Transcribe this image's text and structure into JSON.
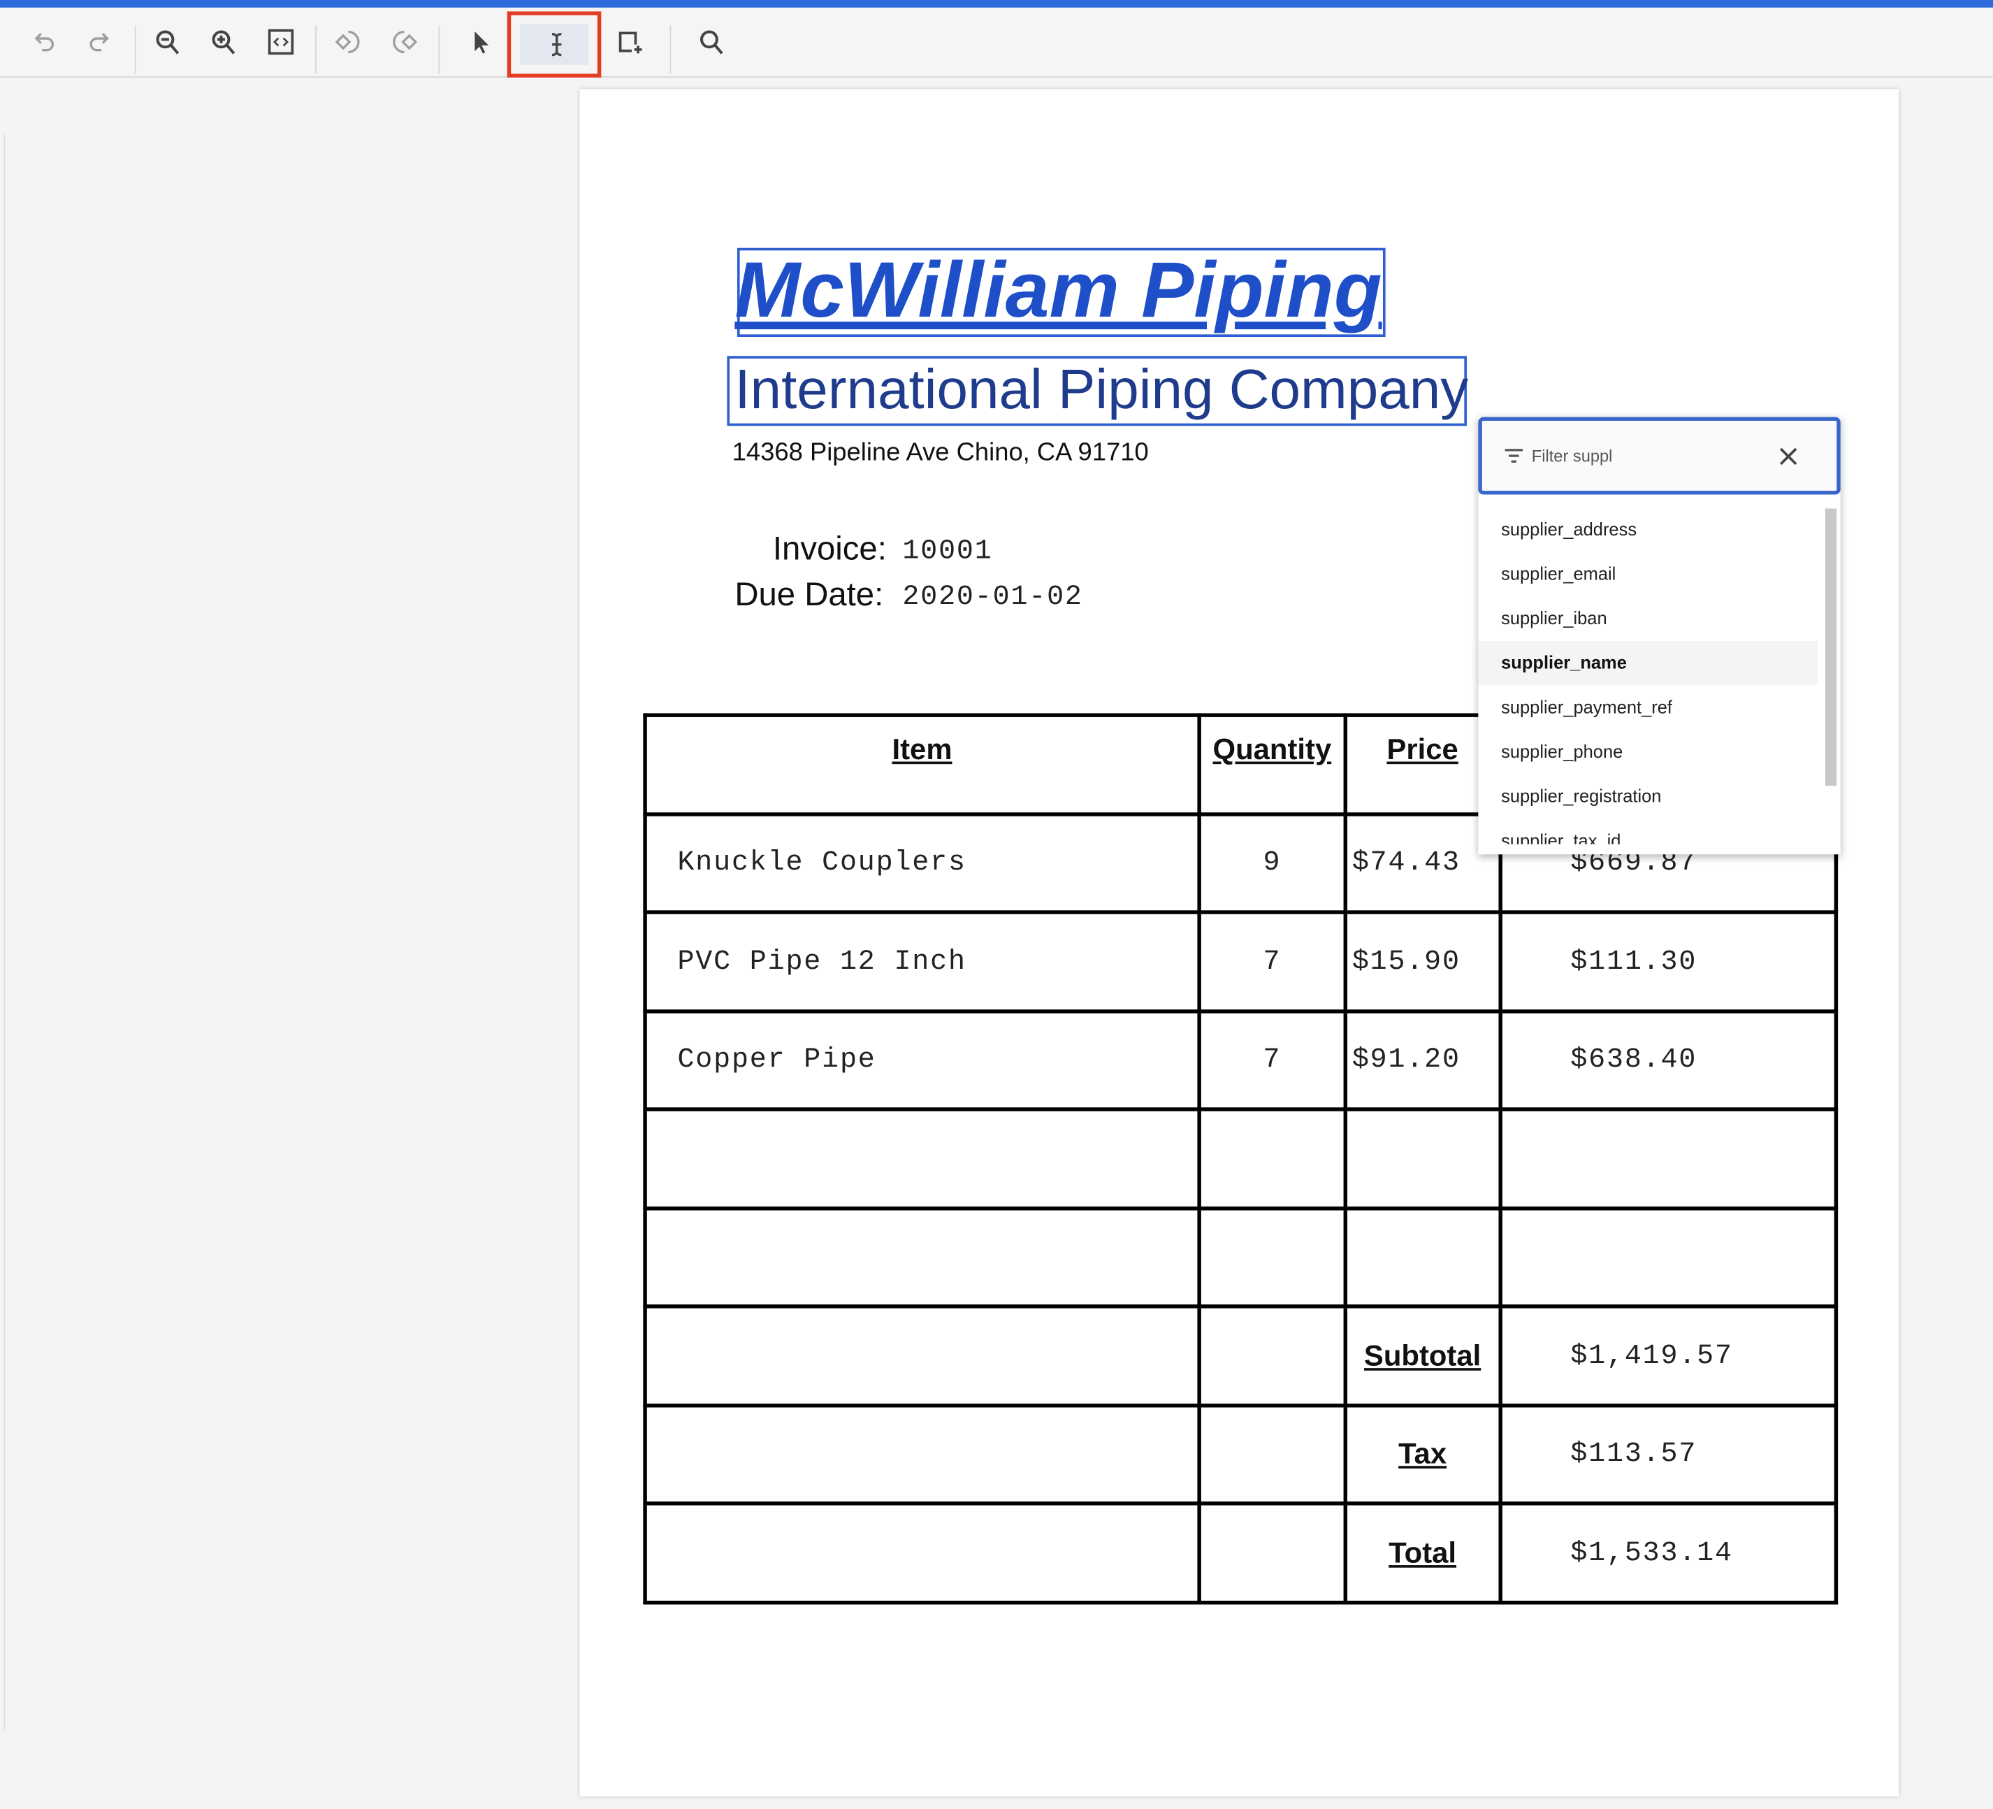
{
  "toolbar": {
    "icons": [
      "undo-icon",
      "redo-icon",
      "zoom-out-icon",
      "zoom-in-icon",
      "fit-page-icon",
      "rotate-left-icon",
      "rotate-right-icon",
      "pointer-icon",
      "text-select-icon",
      "add-box-icon",
      "search-icon"
    ],
    "active_tool": "text-select-icon",
    "colors": {
      "accent": "#2d6bdc",
      "highlight": "#e23c22"
    }
  },
  "document": {
    "company": "McWilliam Piping",
    "subtitle": "International Piping Company",
    "address": "14368 Pipeline Ave Chino, CA 91710",
    "invoice_label": "Invoice:",
    "invoice_value": "10001",
    "due_label": "Due Date:",
    "due_value": "2020-01-02",
    "table": {
      "headers": [
        "Item",
        "Quantity",
        "Price"
      ],
      "rows": [
        [
          "Knuckle Couplers",
          "9",
          "$74.43",
          "$669.87"
        ],
        [
          "PVC Pipe 12 Inch",
          "7",
          "$15.90",
          "$111.30"
        ],
        [
          "Copper Pipe",
          "7",
          "$91.20",
          "$638.40"
        ],
        [
          "",
          "",
          "",
          ""
        ],
        [
          "",
          "",
          "",
          ""
        ]
      ],
      "subtotal_label": "Subtotal",
      "subtotal": "$1,419.57",
      "tax_label": "Tax",
      "tax": "$113.57",
      "total_label": "Total",
      "total": "$1,533.14"
    }
  },
  "dropdown": {
    "filter_value": "Filter suppl",
    "items": [
      "supplier_address",
      "supplier_email",
      "supplier_iban",
      "supplier_name",
      "supplier_payment_ref",
      "supplier_phone",
      "supplier_registration",
      "supplier_tax_id"
    ],
    "selected": "supplier_name"
  }
}
